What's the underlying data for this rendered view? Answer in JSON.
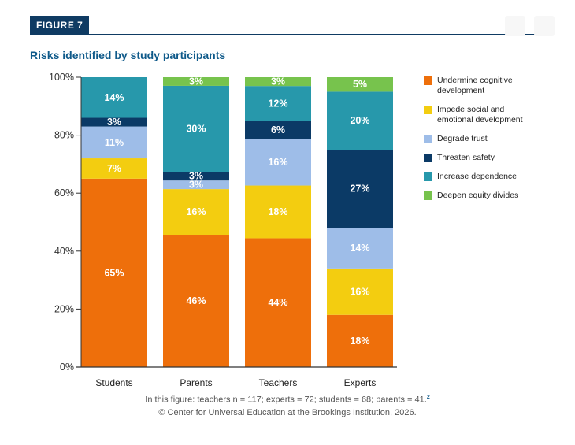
{
  "figure_label": "FIGURE 7",
  "chart_data": {
    "type": "bar",
    "stacked": true,
    "title": "Risks identified by study participants",
    "xlabel": "",
    "ylabel": "",
    "ylim": [
      0,
      100
    ],
    "yticks": [
      "0%",
      "20%",
      "40%",
      "60%",
      "80%",
      "100%"
    ],
    "categories": [
      "Students",
      "Parents",
      "Teachers",
      "Experts"
    ],
    "series": [
      {
        "name": "Undermine cognitive development",
        "color": "#ee6f0b",
        "values": [
          65,
          46,
          44,
          18
        ],
        "labels": [
          "65%",
          "46%",
          "44%",
          "18%"
        ]
      },
      {
        "name": "Impede social and emotional development",
        "color": "#f3cd10",
        "values": [
          7,
          16,
          18,
          16
        ],
        "labels": [
          "7%",
          "16%",
          "18%",
          "16%"
        ]
      },
      {
        "name": "Degrade trust",
        "color": "#9ebde8",
        "values": [
          11,
          3,
          16,
          14
        ],
        "labels": [
          "11%",
          "3%",
          "16%",
          "14%"
        ]
      },
      {
        "name": "Threaten safety",
        "color": "#0b3a66",
        "values": [
          3,
          3,
          6,
          27
        ],
        "labels": [
          "3%",
          "3%",
          "6%",
          "27%"
        ]
      },
      {
        "name": "Increase dependence",
        "color": "#2798ab",
        "values": [
          14,
          30,
          12,
          20
        ],
        "labels": [
          "14%",
          "30%",
          "12%",
          "20%"
        ]
      },
      {
        "name": "Deepen equity divides",
        "color": "#77c34d",
        "values": [
          0,
          3,
          3,
          5
        ],
        "labels": [
          "",
          "3%",
          "3%",
          "5%"
        ]
      }
    ],
    "legend_position": "right",
    "grid": false
  },
  "legend": [
    {
      "lines": [
        "Undermine cognitive",
        "development"
      ],
      "color": "#ee6f0b"
    },
    {
      "lines": [
        "Impede social and",
        "emotional development"
      ],
      "color": "#f3cd10"
    },
    {
      "lines": [
        "Degrade trust"
      ],
      "color": "#9ebde8"
    },
    {
      "lines": [
        "Threaten safety"
      ],
      "color": "#0b3a66"
    },
    {
      "lines": [
        "Increase dependence"
      ],
      "color": "#2798ab"
    },
    {
      "lines": [
        "Deepen equity divides"
      ],
      "color": "#77c34d"
    }
  ],
  "note": "In this figure: teachers n = 117; experts = 72; students = 68; parents = 41.",
  "note_ref": "2",
  "credit": "© Center for Universal Education at the Brookings Institution, 2026."
}
